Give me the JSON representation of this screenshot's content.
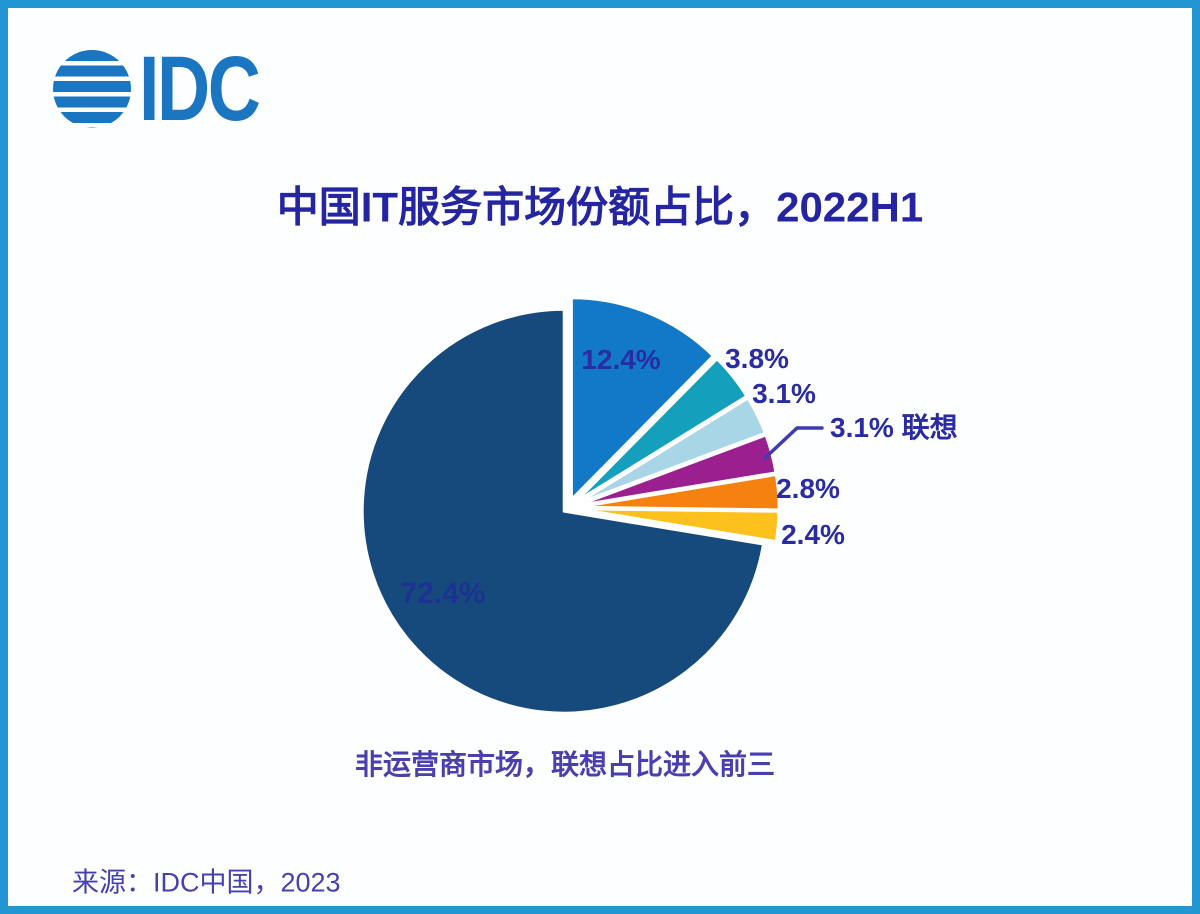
{
  "page": {
    "border_color": "#2196d2",
    "background": "#fdfeff"
  },
  "header": {
    "logo_text": "IDC",
    "logo_color": "#1b76c1"
  },
  "chart_data": {
    "type": "pie",
    "title": "中国IT服务市场份额占比，2022H1",
    "caption": "非运营商市场，联想占比进入前三",
    "start_angle_deg": 0,
    "direction": "clockwise",
    "legend_position": "none",
    "label_color": "#2b2ba2",
    "slices": [
      {
        "label": "12.4%",
        "value": 12.4,
        "color": "#1278c8"
      },
      {
        "label": "3.8%",
        "value": 3.8,
        "color": "#14a0bc"
      },
      {
        "label": "3.1%",
        "value": 3.1,
        "color": "#a9d6e6"
      },
      {
        "label": "3.1% 联想",
        "value": 3.1,
        "color": "#9c1f8f",
        "callout": true,
        "company": "联想"
      },
      {
        "label": "2.8%",
        "value": 2.8,
        "color": "#f5820e"
      },
      {
        "label": "2.4%",
        "value": 2.4,
        "color": "#fcc11c"
      },
      {
        "label": "72.4%",
        "value": 72.4,
        "color": "#164a7c"
      }
    ]
  },
  "footer": {
    "source": "来源：IDC中国，2023"
  }
}
